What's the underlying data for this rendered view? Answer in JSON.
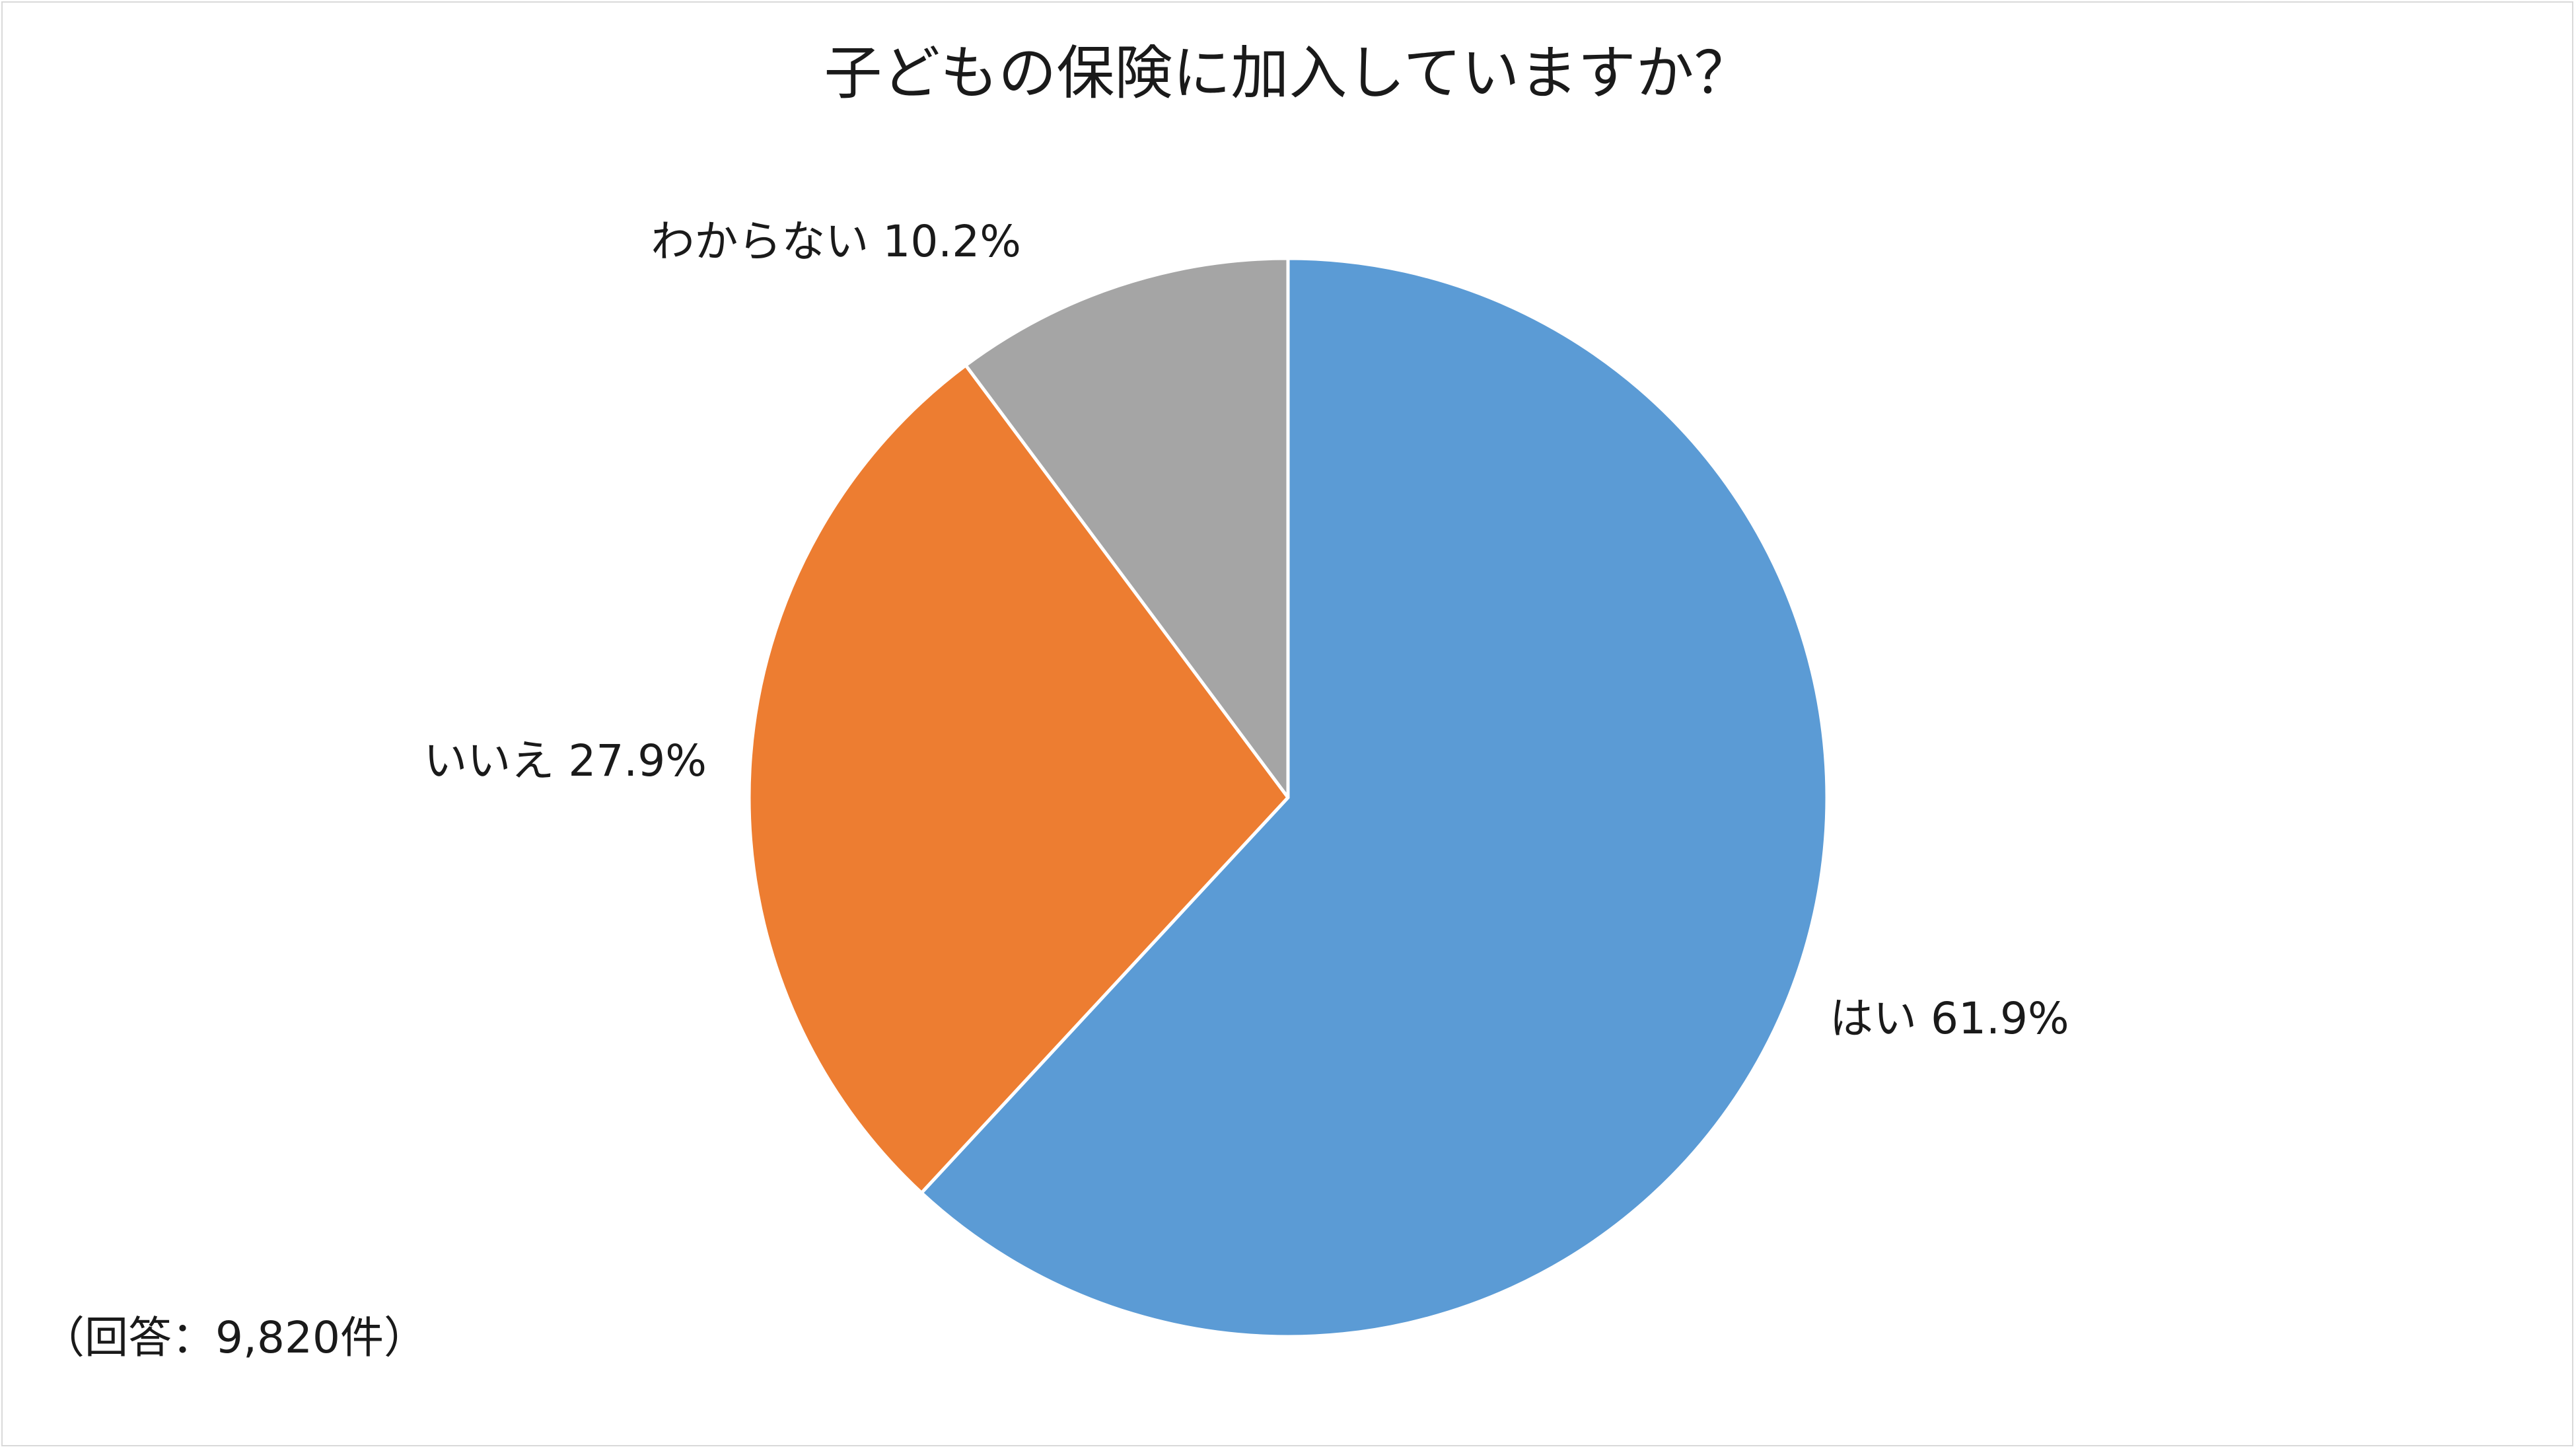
{
  "title": "子どもの保険に加入していますか？",
  "footnote": "（回答：9,820件）",
  "chart_data": {
    "type": "pie",
    "title": "子どもの保険に加入していますか？",
    "slices": [
      {
        "label": "はい",
        "value": 61.9,
        "display": "はい 61.9%",
        "color": "#5b9bd5"
      },
      {
        "label": "いいえ",
        "value": 27.9,
        "display": "いいえ 27.9%",
        "color": "#ed7d31"
      },
      {
        "label": "わからない",
        "value": 10.2,
        "display": "わからない 10.2%",
        "color": "#a5a5a5"
      }
    ],
    "start_angle": "12 o'clock",
    "direction": "clockwise",
    "legend": "none"
  }
}
